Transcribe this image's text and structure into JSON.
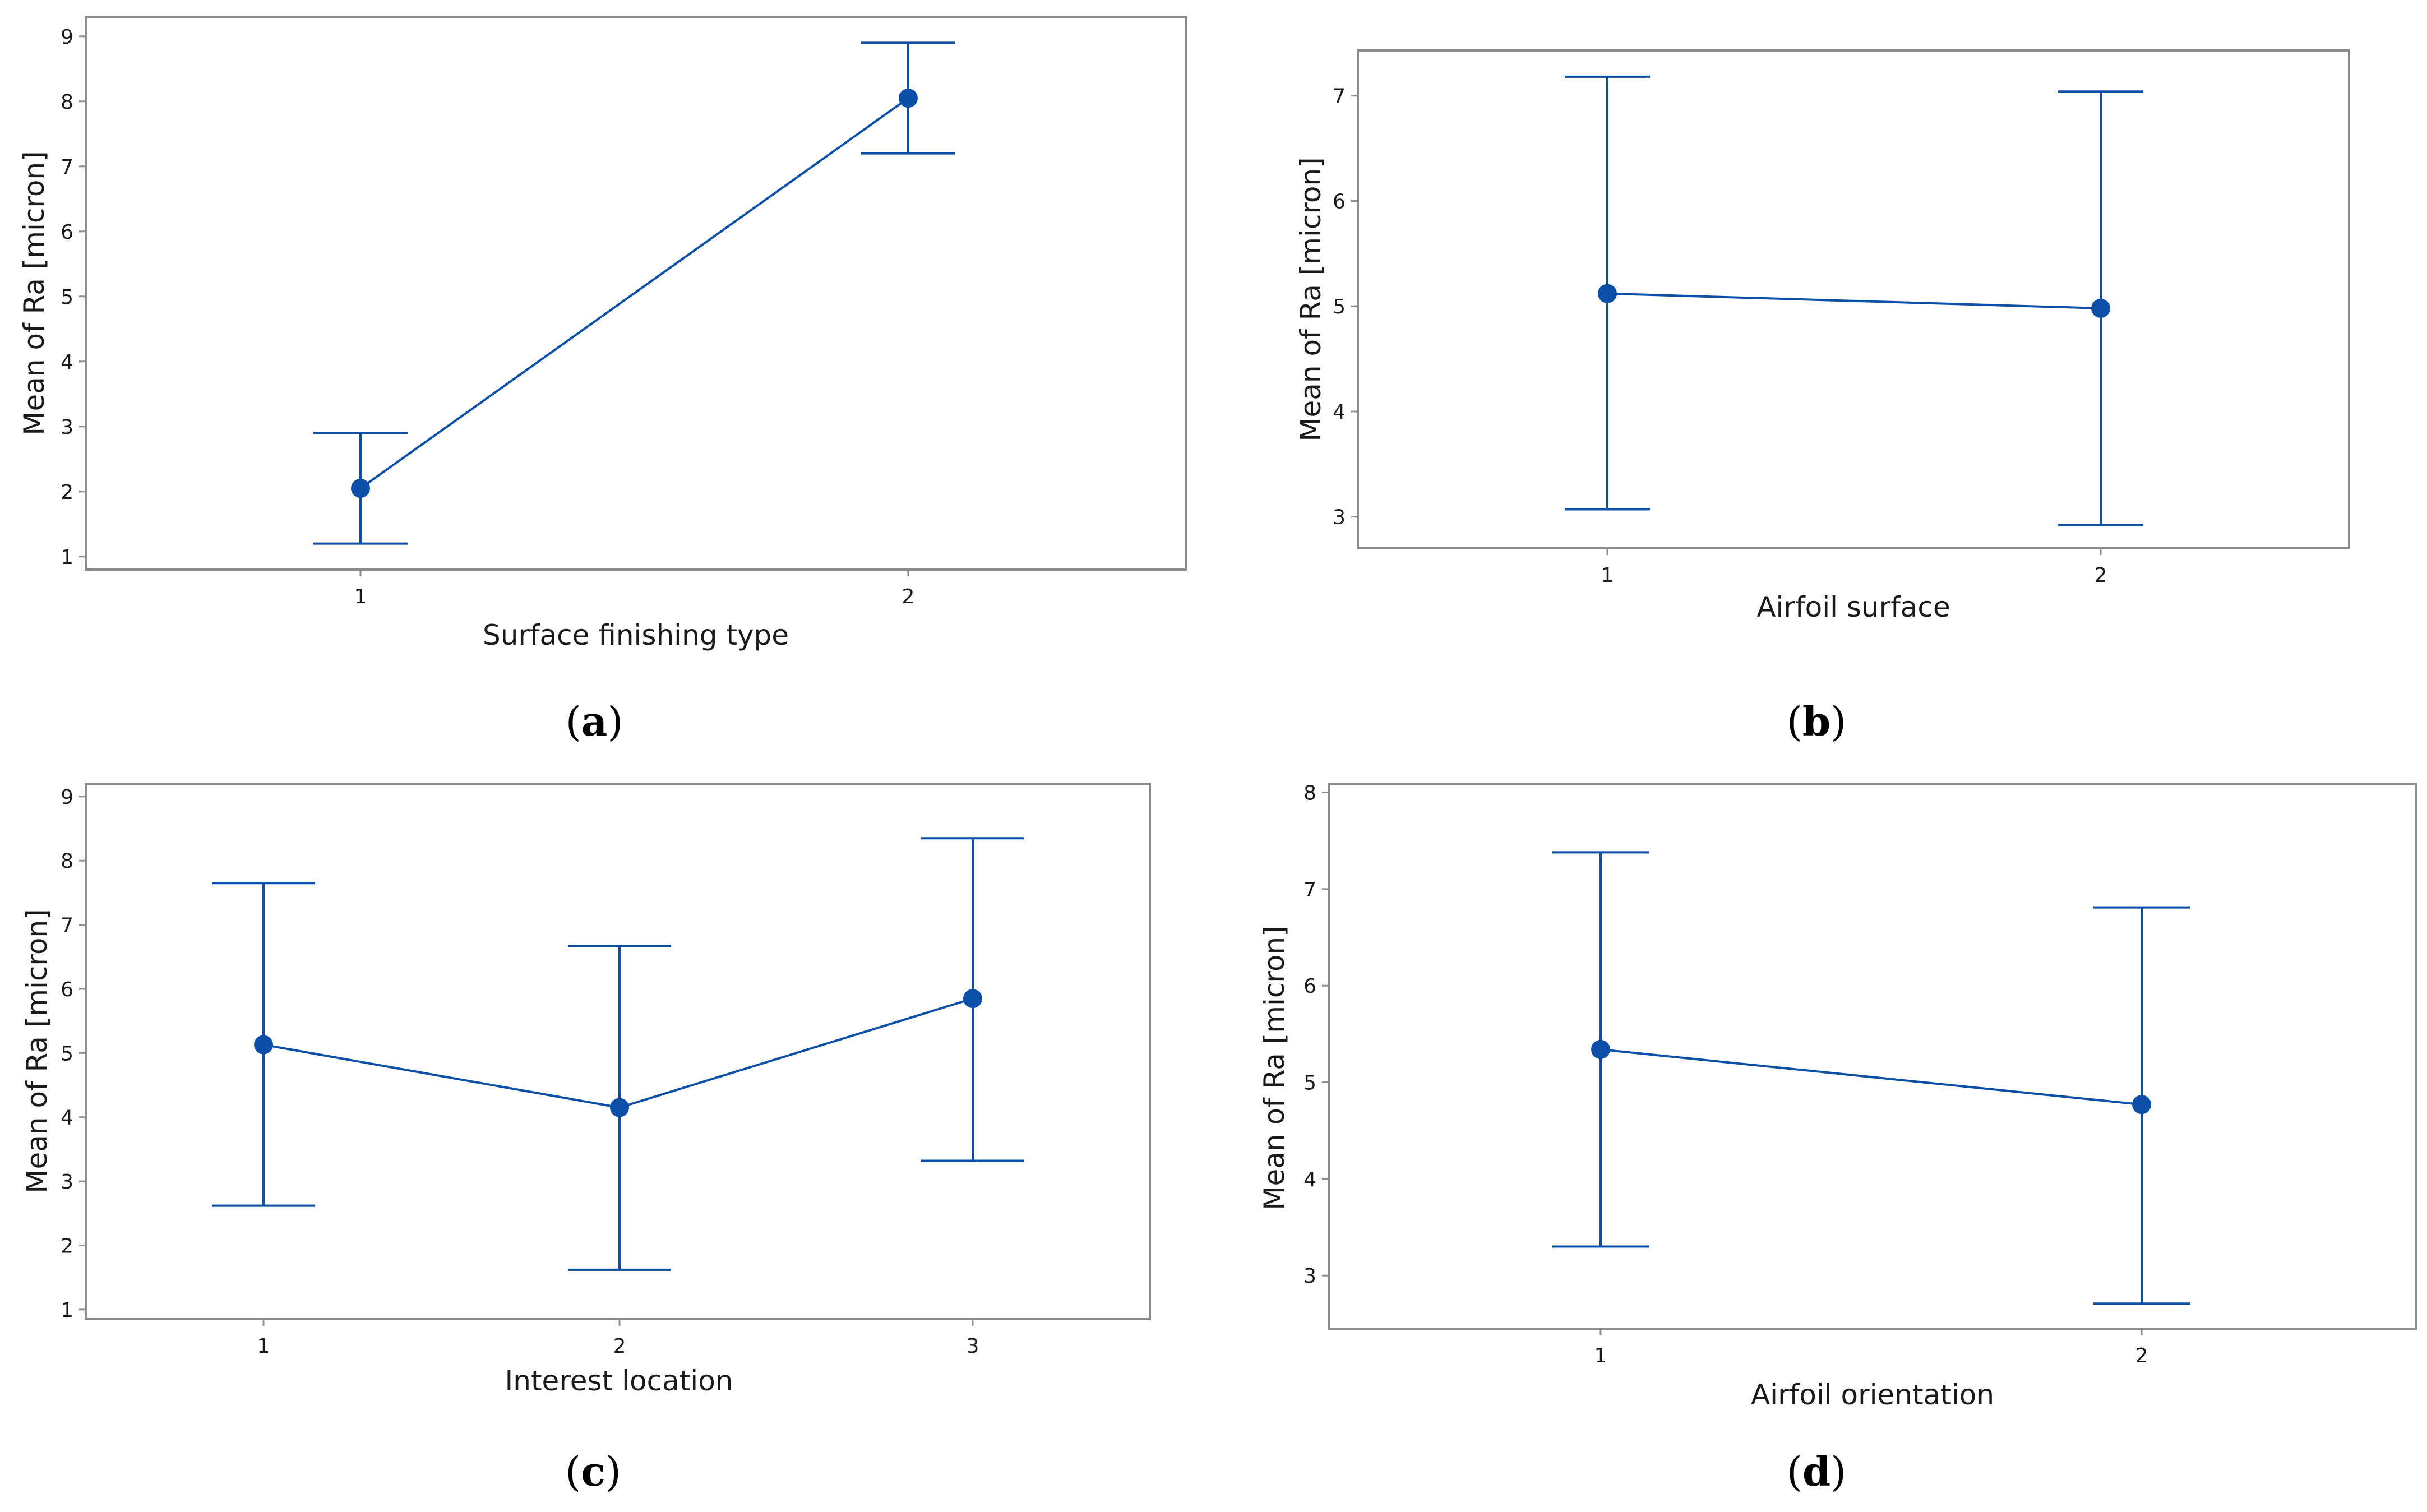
{
  "colors": {
    "series": "#0b4fa8",
    "frame": "#8c8c8c",
    "text": "#1a1a1a"
  },
  "chart_data": [
    {
      "id": "a",
      "type": "line",
      "plot_kind": "interval plot (mean with error bars)",
      "panel_label": "a",
      "xlabel": "Surface finishing type",
      "ylabel": "Mean of Ra [micron]",
      "categories": [
        "1",
        "2"
      ],
      "means": [
        2.05,
        8.05
      ],
      "lower": [
        1.2,
        7.2
      ],
      "upper": [
        2.9,
        8.9
      ],
      "ylim": [
        0.8,
        9.3
      ],
      "yticks": [
        1,
        2,
        3,
        4,
        5,
        6,
        7,
        8,
        9
      ],
      "ytick_labels": [
        "1",
        "2",
        "3",
        "4",
        "5",
        "6",
        "7",
        "8",
        "9"
      ]
    },
    {
      "id": "b",
      "type": "line",
      "plot_kind": "interval plot (mean with error bars)",
      "panel_label": "b",
      "xlabel": "Airfoil surface",
      "ylabel": "Mean of Ra [micron]",
      "categories": [
        "1",
        "2"
      ],
      "means": [
        5.12,
        4.98
      ],
      "lower": [
        3.07,
        2.92
      ],
      "upper": [
        7.18,
        7.04
      ],
      "ylim": [
        2.7,
        7.43
      ],
      "yticks": [
        3,
        4,
        5,
        6,
        7
      ],
      "ytick_labels": [
        "3",
        "4",
        "5",
        "6",
        "7"
      ]
    },
    {
      "id": "c",
      "type": "line",
      "plot_kind": "interval plot (mean with error bars)",
      "panel_label": "c",
      "xlabel": "Interest location",
      "ylabel": "Mean of Ra [micron]",
      "categories": [
        "1",
        "2",
        "3"
      ],
      "means": [
        5.13,
        4.15,
        5.85
      ],
      "lower": [
        2.62,
        1.62,
        3.32
      ],
      "upper": [
        7.65,
        6.67,
        8.35
      ],
      "ylim": [
        0.85,
        9.2
      ],
      "yticks": [
        1,
        2,
        3,
        4,
        5,
        6,
        7,
        8,
        9
      ],
      "ytick_labels": [
        "1",
        "2",
        "3",
        "4",
        "5",
        "6",
        "7",
        "8",
        "9"
      ]
    },
    {
      "id": "d",
      "type": "line",
      "plot_kind": "interval plot (mean with error bars)",
      "panel_label": "d",
      "xlabel": "Airfoil orientation",
      "ylabel": "Mean of Ra [micron]",
      "categories": [
        "1",
        "2"
      ],
      "means": [
        5.34,
        4.77
      ],
      "lower": [
        3.3,
        2.71
      ],
      "upper": [
        7.38,
        6.81
      ],
      "ylim": [
        2.45,
        8.09
      ],
      "yticks": [
        3,
        4,
        5,
        6,
        7,
        8
      ],
      "ytick_labels": [
        "3",
        "4",
        "5",
        "6",
        "7",
        "8"
      ]
    }
  ]
}
